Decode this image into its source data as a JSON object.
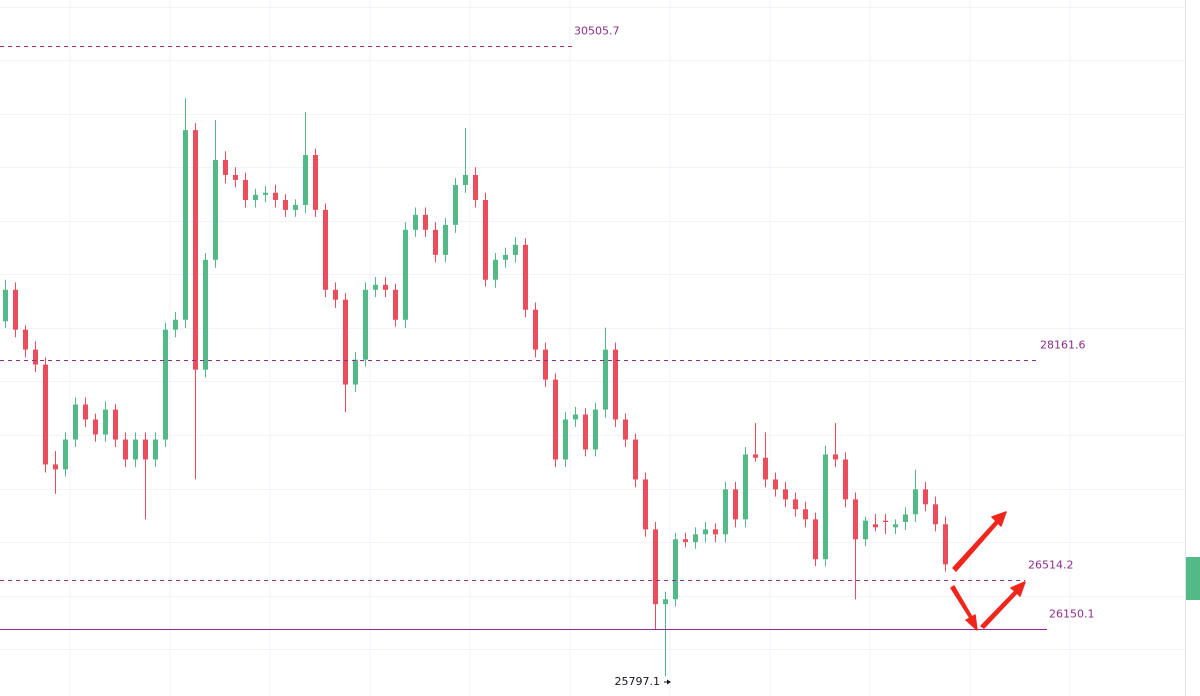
{
  "chart_data": {
    "type": "candlestick",
    "ylim": [
      25650,
      30850
    ],
    "yticks": [
      26000,
      26400,
      26800,
      27200,
      27600,
      28000,
      28400,
      28800,
      29200,
      29600,
      30000,
      30400,
      30800
    ],
    "grid": true,
    "up_color": "#53b987",
    "down_color": "#eb4d5c",
    "level_color": "#8e2d8e",
    "open": [
      28450,
      28685,
      28387,
      28238,
      28126,
      27380,
      27343,
      27566,
      27828,
      27716,
      27604,
      27790,
      27566,
      27417,
      27566,
      27417,
      27566,
      28387,
      28461,
      29878,
      28088,
      28909,
      29655,
      29543,
      29506,
      29356,
      29394,
      29410,
      29356,
      29282,
      29319,
      29692,
      29282,
      28685,
      28611,
      27977,
      28163,
      28685,
      28722,
      28685,
      28461,
      29133,
      29245,
      29133,
      28946,
      29170,
      29468,
      29543,
      29356,
      28760,
      28909,
      28946,
      29021,
      28536,
      28238,
      28014,
      27417,
      27716,
      27753,
      27492,
      27790,
      28238,
      27716,
      27566,
      27268,
      26895,
      26336,
      26373,
      26821,
      26800,
      26858,
      26895,
      26858,
      27194,
      26970,
      27455,
      27430,
      27268,
      27194,
      27119,
      27045,
      26970,
      26672,
      27455,
      27417,
      27119,
      26821,
      26933,
      26960,
      26910,
      26950,
      27007,
      27194,
      27082,
      26933
    ],
    "high": [
      28760,
      28740,
      28420,
      28300,
      28180,
      27480,
      27620,
      27880,
      27880,
      27760,
      27850,
      27830,
      27620,
      27620,
      27620,
      27620,
      28440,
      28520,
      30117,
      29930,
      28960,
      29953,
      29720,
      29600,
      29560,
      29440,
      29460,
      29470,
      29400,
      29360,
      30013,
      29740,
      29330,
      28740,
      28660,
      28220,
      28740,
      28780,
      28780,
      28730,
      29190,
      29300,
      29300,
      29190,
      29220,
      29520,
      29893,
      29600,
      29410,
      28960,
      29000,
      29080,
      29070,
      28590,
      28290,
      28060,
      27770,
      27810,
      27800,
      27840,
      28402,
      28290,
      27760,
      27610,
      27320,
      26950,
      26430,
      26870,
      26870,
      26910,
      26950,
      26940,
      27250,
      27250,
      27510,
      27690,
      27620,
      27320,
      27250,
      27170,
      27100,
      27020,
      27520,
      27690,
      27470,
      27170,
      26990,
      27010,
      27010,
      26970,
      27060,
      27340,
      27250,
      27140,
      26990
    ],
    "low": [
      28400,
      28330,
      28180,
      28070,
      27320,
      27160,
      27290,
      27510,
      27660,
      27550,
      27550,
      27510,
      27360,
      27360,
      26970,
      27360,
      27510,
      28330,
      28400,
      27268,
      28030,
      28850,
      29480,
      29450,
      29300,
      29300,
      29340,
      29300,
      29230,
      29230,
      29260,
      29230,
      28630,
      28550,
      27770,
      27920,
      28110,
      28630,
      28630,
      28410,
      28400,
      29080,
      29080,
      28890,
      28890,
      29110,
      29410,
      29300,
      28710,
      28700,
      28850,
      28890,
      28480,
      28180,
      27960,
      27360,
      27360,
      27660,
      27440,
      27440,
      27730,
      27660,
      27510,
      27210,
      26840,
      26150,
      25797.1,
      26320,
      26760,
      26750,
      26800,
      26800,
      26800,
      26910,
      26910,
      27400,
      27210,
      27140,
      27060,
      26990,
      26910,
      26620,
      26620,
      27360,
      27060,
      26373,
      26770,
      26880,
      26860,
      26860,
      26890,
      26950,
      27030,
      26880,
      26580
    ],
    "close": [
      28685,
      28387,
      28238,
      28126,
      27380,
      27343,
      27566,
      27828,
      27716,
      27604,
      27790,
      27566,
      27417,
      27566,
      27417,
      27566,
      28387,
      28461,
      29878,
      28088,
      28909,
      29655,
      29543,
      29506,
      29356,
      29394,
      29410,
      29356,
      29282,
      29319,
      29692,
      29282,
      28685,
      28611,
      27977,
      28163,
      28685,
      28722,
      28685,
      28461,
      29133,
      29245,
      29133,
      28946,
      29170,
      29468,
      29543,
      29356,
      28760,
      28909,
      28946,
      29021,
      28536,
      28238,
      28014,
      27417,
      27716,
      27753,
      27492,
      27790,
      28238,
      27716,
      27566,
      27268,
      26895,
      26336,
      26373,
      26821,
      26800,
      26858,
      26895,
      26858,
      27194,
      26970,
      27455,
      27430,
      27268,
      27194,
      27119,
      27045,
      26970,
      26672,
      27455,
      27417,
      27119,
      26821,
      26960,
      26910,
      26950,
      26933,
      27007,
      27194,
      27082,
      26933,
      26634
    ],
    "levels": [
      {
        "value": 30505.7,
        "style": "dashed"
      },
      {
        "value": 28161.6,
        "style": "dashed"
      },
      {
        "value": 26514.2,
        "style": "dashed"
      },
      {
        "value": 26150.1,
        "style": "solid"
      }
    ]
  }
}
